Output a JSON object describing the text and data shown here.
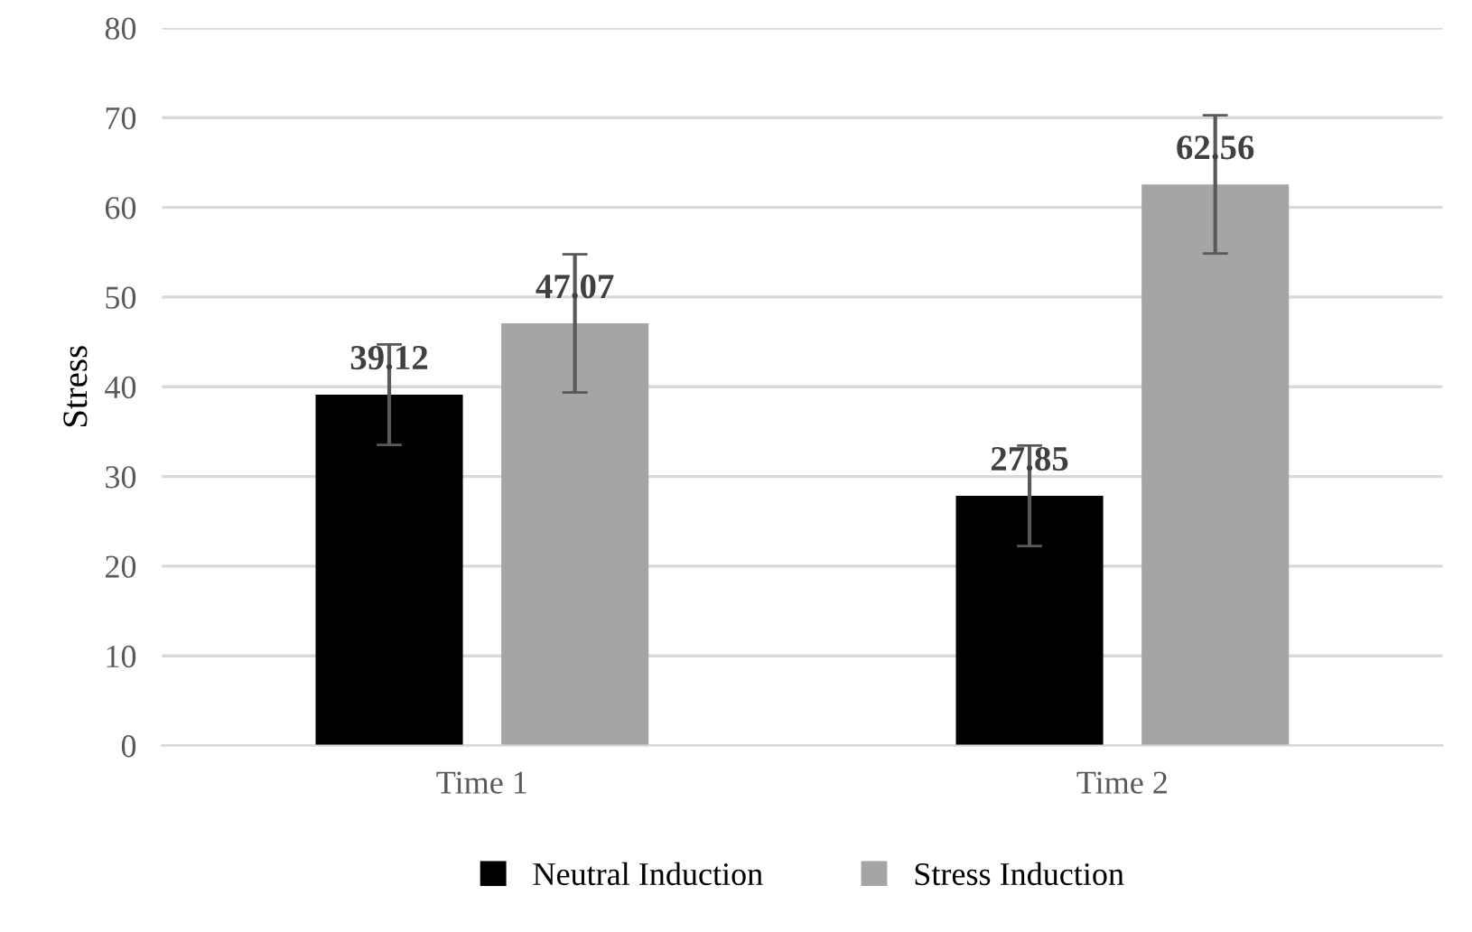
{
  "chart_data": {
    "type": "bar",
    "ylabel": "Stress",
    "categories": [
      "Time 1",
      "Time 2"
    ],
    "series": [
      {
        "name": "Neutral Induction",
        "color": "#000000",
        "values": [
          39.12,
          27.85
        ],
        "errors": [
          5.6,
          5.6
        ]
      },
      {
        "name": "Stress Induction",
        "color": "#a5a5a5",
        "values": [
          47.07,
          62.56
        ],
        "errors": [
          7.7,
          7.7
        ]
      }
    ],
    "ylim": [
      0,
      80
    ],
    "yticks": [
      0,
      10,
      20,
      30,
      40,
      50,
      60,
      70,
      80
    ],
    "grid": "y",
    "legend": "bottom",
    "data_labels": true
  }
}
